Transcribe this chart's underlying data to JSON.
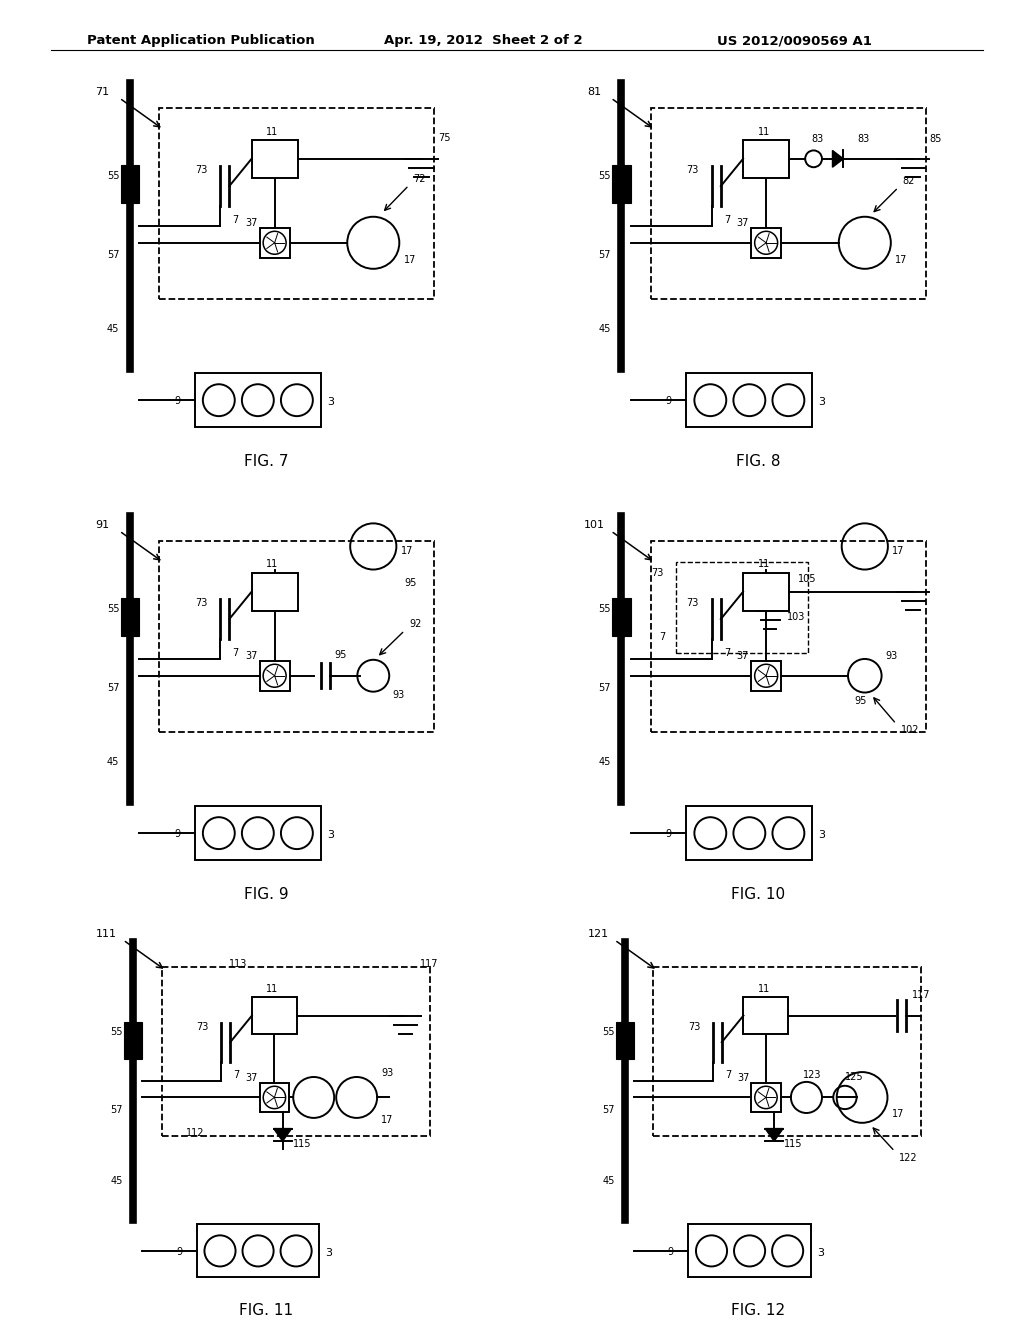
{
  "header_left": "Patent Application Publication",
  "header_mid": "Apr. 19, 2012  Sheet 2 of 2",
  "header_right": "US 2012/0090569 A1",
  "background": "#ffffff"
}
